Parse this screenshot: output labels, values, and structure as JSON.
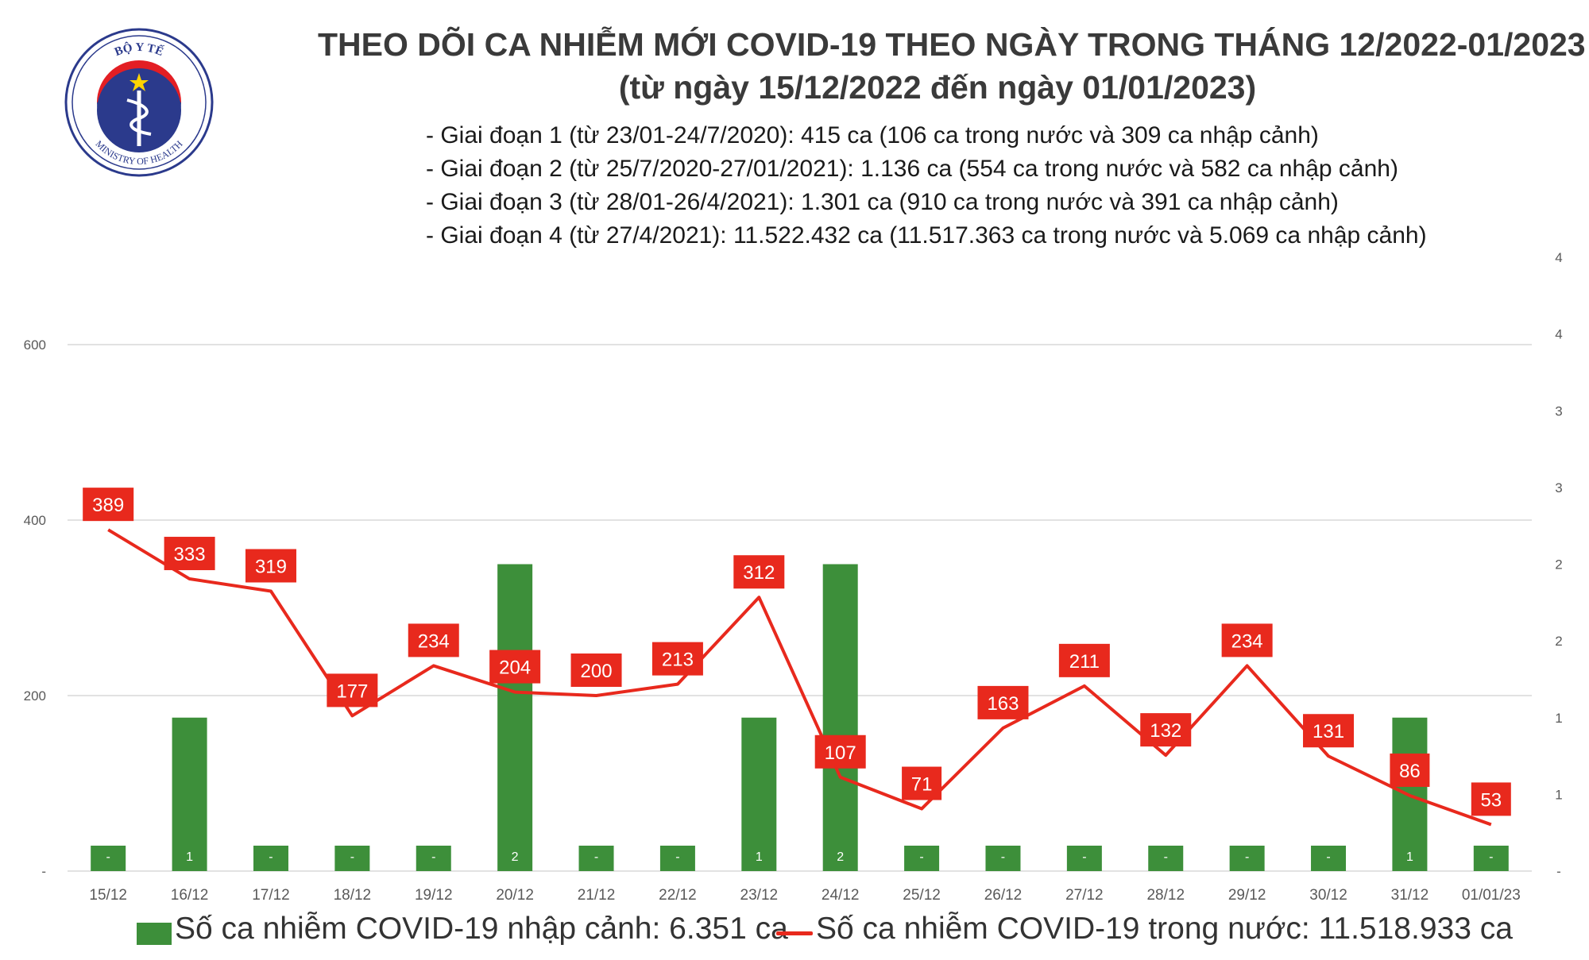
{
  "header": {
    "title_line1": "THEO DÕI CA NHIỄM MỚI COVID-19 THEO NGÀY TRONG THÁNG 12/2022-01/2023",
    "title_line2": "(từ ngày 15/12/2022 đến ngày 01/01/2023)"
  },
  "logo": {
    "top_text": "BỘ Y TẾ",
    "bottom_text": "MINISTRY OF HEALTH"
  },
  "stages": [
    "- Giai đoạn 1 (từ 23/01-24/7/2020): 415 ca (106 ca trong nước và 309 ca nhập cảnh)",
    "- Giai đoạn 2 (từ 25/7/2020-27/01/2021): 1.136 ca (554 ca trong nước và 582 ca nhập cảnh)",
    "- Giai đoạn 3 (từ 28/01-26/4/2021): 1.301 ca (910 ca trong nước và 391 ca nhập cảnh)",
    "- Giai đoạn 4 (từ 27/4/2021): 11.522.432 ca (11.517.363 ca trong nước và 5.069 ca nhập cảnh)"
  ],
  "chart_data": {
    "type": "bar+line",
    "categories": [
      "15/12",
      "16/12",
      "17/12",
      "18/12",
      "19/12",
      "20/12",
      "21/12",
      "22/12",
      "23/12",
      "24/12",
      "25/12",
      "26/12",
      "27/12",
      "28/12",
      "29/12",
      "30/12",
      "31/12",
      "01/01/23"
    ],
    "series": [
      {
        "name": "Số ca nhiễm COVID-19 nhập cảnh: 6.351 ca",
        "type": "bar",
        "axis": "right",
        "values": [
          0,
          1,
          0,
          0,
          0,
          2,
          0,
          0,
          1,
          2,
          0,
          0,
          0,
          0,
          0,
          0,
          1,
          0
        ],
        "labels": [
          "-",
          "1",
          "-",
          "-",
          "-",
          "2",
          "-",
          "-",
          "1",
          "2",
          "-",
          "-",
          "-",
          "-",
          "-",
          "-",
          "1",
          "-"
        ]
      },
      {
        "name": "Số ca nhiễm COVID-19 trong nước: 11.518.933 ca",
        "type": "line",
        "axis": "left",
        "values": [
          389,
          333,
          319,
          177,
          234,
          204,
          200,
          213,
          312,
          107,
          71,
          163,
          211,
          132,
          234,
          131,
          86,
          53
        ]
      }
    ],
    "left_axis": {
      "ticks": [
        "-",
        "200",
        "400",
        "600"
      ],
      "range": [
        0,
        600
      ]
    },
    "right_axis": {
      "ticks": [
        "-",
        "1",
        "1",
        "2",
        "2",
        "3",
        "3",
        "4",
        "4"
      ],
      "range": [
        0,
        4
      ]
    },
    "grid": true,
    "legend_position": "bottom"
  },
  "colors": {
    "bar": "#3d8f3a",
    "line": "#e8291d",
    "label_bg": "#e8291d",
    "grid": "#d9d9d9",
    "axis_text": "#595959"
  }
}
